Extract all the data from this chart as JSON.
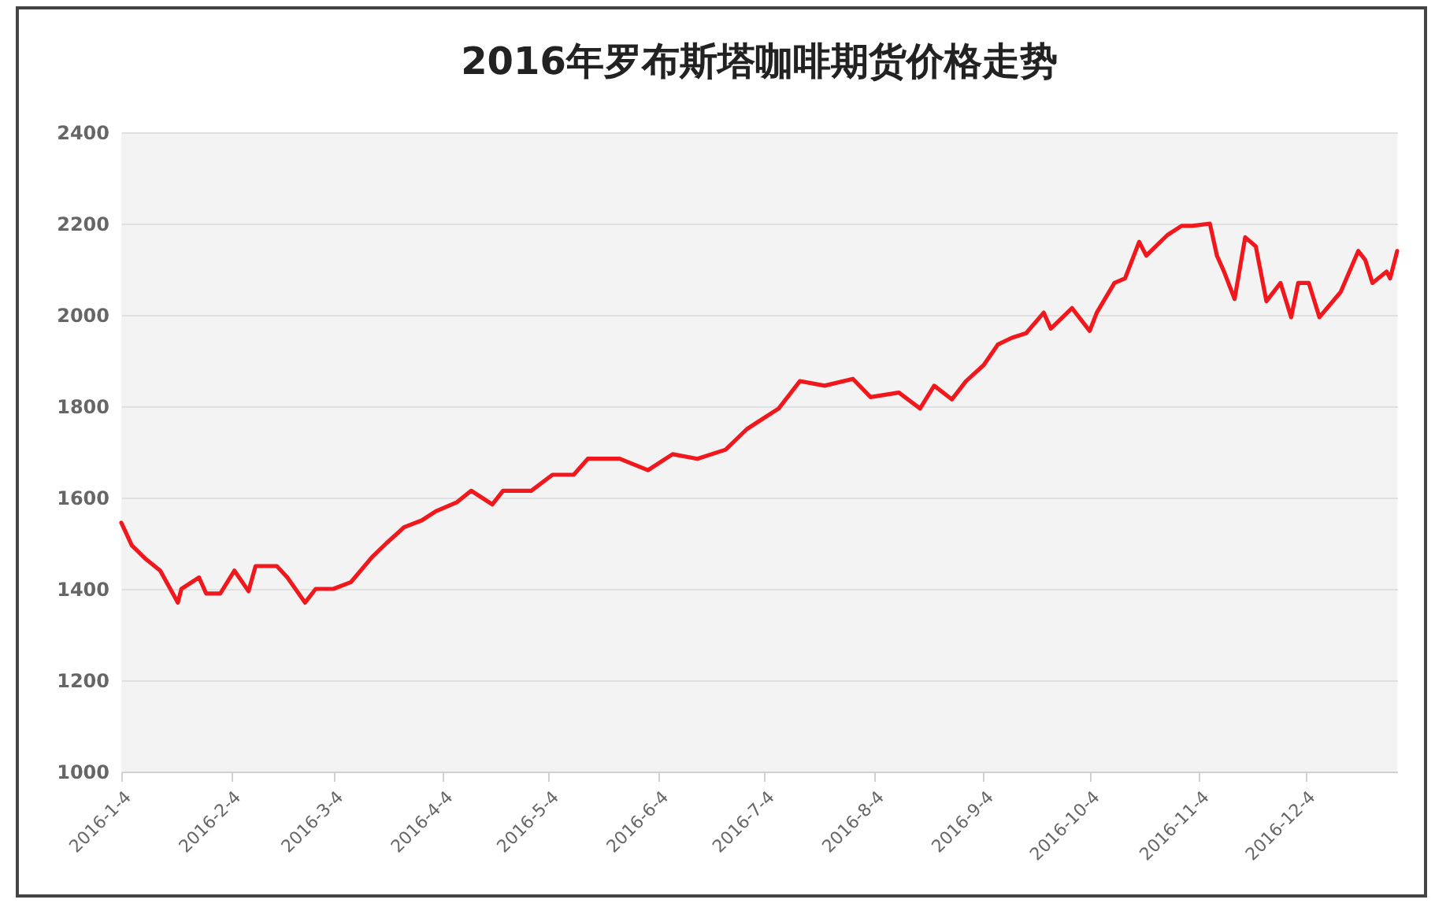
{
  "chart_data": {
    "type": "line",
    "title": "2016年罗布斯塔咖啡期货价格走势",
    "x": [
      "2016-01-04",
      "2016-01-07",
      "2016-01-11",
      "2016-01-15",
      "2016-01-20",
      "2016-01-21",
      "2016-01-26",
      "2016-01-28",
      "2016-02-01",
      "2016-02-05",
      "2016-02-09",
      "2016-02-11",
      "2016-02-17",
      "2016-02-20",
      "2016-02-25",
      "2016-02-28",
      "2016-03-04",
      "2016-03-09",
      "2016-03-15",
      "2016-03-19",
      "2016-03-24",
      "2016-03-29",
      "2016-04-02",
      "2016-04-08",
      "2016-04-12",
      "2016-04-18",
      "2016-04-21",
      "2016-04-29",
      "2016-05-05",
      "2016-05-11",
      "2016-05-15",
      "2016-05-24",
      "2016-06-01",
      "2016-06-08",
      "2016-06-15",
      "2016-06-23",
      "2016-06-29",
      "2016-07-02",
      "2016-07-08",
      "2016-07-14",
      "2016-07-21",
      "2016-07-29",
      "2016-08-03",
      "2016-08-11",
      "2016-08-17",
      "2016-08-21",
      "2016-08-26",
      "2016-08-30",
      "2016-09-04",
      "2016-09-08",
      "2016-09-12",
      "2016-09-16",
      "2016-09-21",
      "2016-09-23",
      "2016-09-29",
      "2016-10-04",
      "2016-10-06",
      "2016-10-11",
      "2016-10-14",
      "2016-10-18",
      "2016-10-20",
      "2016-10-26",
      "2016-10-30",
      "2016-11-02",
      "2016-11-07",
      "2016-11-09",
      "2016-11-11",
      "2016-11-14",
      "2016-11-17",
      "2016-11-20",
      "2016-11-23",
      "2016-11-27",
      "2016-11-30",
      "2016-12-02",
      "2016-12-05",
      "2016-12-08",
      "2016-12-14",
      "2016-12-19",
      "2016-12-21",
      "2016-12-23",
      "2016-12-27",
      "2016-12-28",
      "2016-12-30"
    ],
    "series": [
      {
        "color": "#f0181c",
        "values": [
          1545,
          1495,
          1465,
          1440,
          1370,
          1400,
          1425,
          1390,
          1390,
          1440,
          1395,
          1450,
          1450,
          1425,
          1370,
          1400,
          1400,
          1415,
          1470,
          1500,
          1535,
          1550,
          1570,
          1590,
          1615,
          1585,
          1615,
          1615,
          1650,
          1650,
          1685,
          1685,
          1660,
          1695,
          1685,
          1705,
          1750,
          1765,
          1795,
          1855,
          1845,
          1860,
          1820,
          1830,
          1795,
          1845,
          1815,
          1855,
          1890,
          1935,
          1950,
          1960,
          2005,
          1970,
          2015,
          1965,
          2005,
          2070,
          2080,
          2160,
          2130,
          2175,
          2195,
          2195,
          2200,
          2130,
          2095,
          2035,
          2170,
          2150,
          2030,
          2070,
          1995,
          2070,
          2070,
          1995,
          2050,
          2140,
          2120,
          2070,
          2095,
          2080,
          2140
        ]
      }
    ],
    "xlim": [
      "2016-01-04",
      "2016-12-30"
    ],
    "xticks": [
      {
        "value": "2016-01-04",
        "label": "2016-1-4"
      },
      {
        "value": "2016-02-04",
        "label": "2016-2-4"
      },
      {
        "value": "2016-03-04",
        "label": "2016-3-4"
      },
      {
        "value": "2016-04-04",
        "label": "2016-4-4"
      },
      {
        "value": "2016-05-04",
        "label": "2016-5-4"
      },
      {
        "value": "2016-06-04",
        "label": "2016-6-4"
      },
      {
        "value": "2016-07-04",
        "label": "2016-7-4"
      },
      {
        "value": "2016-08-04",
        "label": "2016-8-4"
      },
      {
        "value": "2016-09-04",
        "label": "2016-9-4"
      },
      {
        "value": "2016-10-04",
        "label": "2016-10-4"
      },
      {
        "value": "2016-11-04",
        "label": "2016-11-4"
      },
      {
        "value": "2016-12-04",
        "label": "2016-12-4"
      }
    ],
    "ylim": [
      1000,
      2400
    ],
    "yticks": [
      1000,
      1200,
      1400,
      1600,
      1800,
      2000,
      2200,
      2400
    ],
    "grid": "y"
  }
}
